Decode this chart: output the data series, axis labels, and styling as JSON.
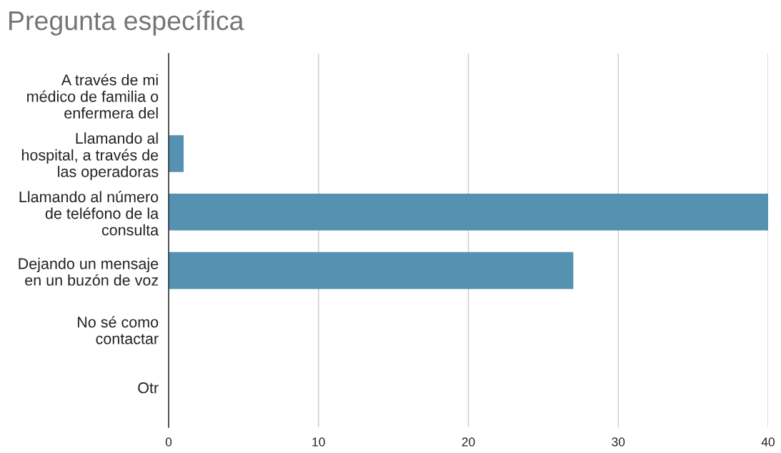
{
  "chart_data": {
    "type": "bar",
    "orientation": "horizontal",
    "title": "Pregunta específica",
    "categories": [
      "A través de mi\nmédico de familia o\nenfermera del",
      "Llamando al\nhospital, a través de\nlas operadoras",
      "Llamando al número\nde teléfono de la\nconsulta",
      "Dejando un mensaje\nen un buzón de voz",
      "No sé como\ncontactar",
      "Otr"
    ],
    "values": [
      0,
      1,
      40,
      27,
      0,
      0
    ],
    "color": "#5591b0",
    "xlim": [
      0,
      40
    ],
    "xticks": [
      0,
      10,
      20,
      30,
      40
    ],
    "grid": "x"
  }
}
